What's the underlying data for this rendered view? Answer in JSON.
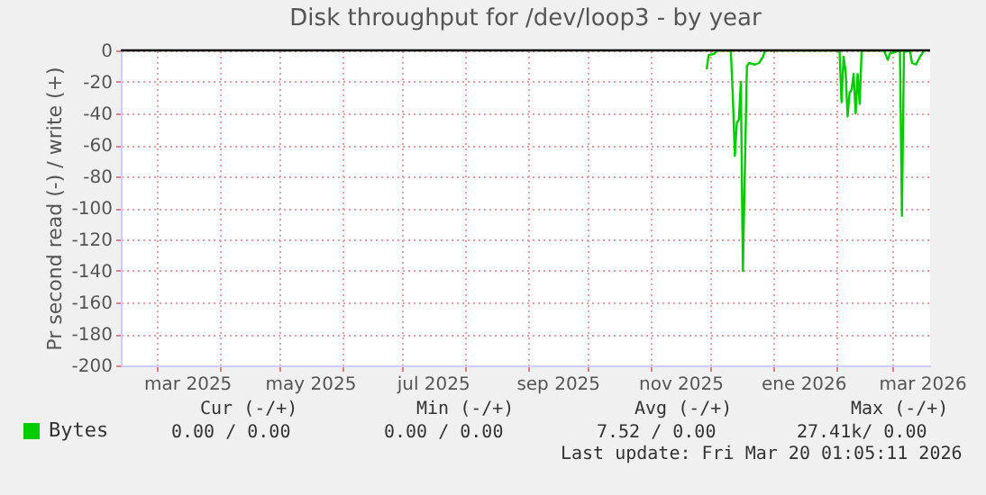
{
  "chart_data": {
    "type": "line",
    "title": "Disk throughput for /dev/loop3 - by year",
    "ylabel": "Pr second read (-) / write (+)",
    "series": [
      {
        "name": "Bytes",
        "color": "#00cc00",
        "x": [
          "2025-11-29",
          "2025-11-30",
          "2025-12-03",
          "2025-12-04",
          "2025-12-11",
          "2025-12-12",
          "2025-12-13",
          "2025-12-14",
          "2025-12-15",
          "2025-12-16",
          "2025-12-17",
          "2025-12-19",
          "2025-12-20",
          "2025-12-23",
          "2025-12-25",
          "2025-12-27",
          "2025-12-28",
          "2026-02-03",
          "2026-02-04",
          "2026-02-05",
          "2026-02-06",
          "2026-02-07",
          "2026-02-08",
          "2026-02-09",
          "2026-02-10",
          "2026-02-11",
          "2026-02-12",
          "2026-02-13",
          "2026-02-14",
          "2026-02-25",
          "2026-02-27",
          "2026-02-28",
          "2026-03-05",
          "2026-03-06",
          "2026-03-07",
          "2026-03-10",
          "2026-03-11",
          "2026-03-13",
          "2026-03-15",
          "2026-03-17"
        ],
        "values": [
          -12,
          -3,
          -2,
          0,
          0,
          -29,
          -67,
          -46,
          -44,
          -20,
          -140,
          -10,
          -8,
          -9,
          -8,
          -4,
          0,
          0,
          -33,
          -4,
          -13,
          -42,
          -27,
          -25,
          -15,
          -40,
          -15,
          -34,
          0,
          0,
          -6,
          -2,
          0,
          -105,
          -1,
          0,
          -8,
          -9,
          -4,
          0
        ]
      }
    ],
    "xlim": [
      "2025-02-11",
      "2026-03-20"
    ],
    "xticks": [
      {
        "value": "2025-03-01",
        "label": null
      },
      {
        "value": "2025-03-16",
        "label": "mar 2025"
      },
      {
        "value": "2025-04-01",
        "label": null
      },
      {
        "value": "2025-05-01",
        "label": null
      },
      {
        "value": "2025-05-16",
        "label": "may 2025"
      },
      {
        "value": "2025-06-01",
        "label": null
      },
      {
        "value": "2025-07-01",
        "label": null
      },
      {
        "value": "2025-07-16",
        "label": "jul 2025"
      },
      {
        "value": "2025-08-01",
        "label": null
      },
      {
        "value": "2025-09-01",
        "label": null
      },
      {
        "value": "2025-09-16",
        "label": "sep 2025"
      },
      {
        "value": "2025-10-01",
        "label": null
      },
      {
        "value": "2025-11-01",
        "label": null
      },
      {
        "value": "2025-11-16",
        "label": "nov 2025"
      },
      {
        "value": "2025-12-01",
        "label": null
      },
      {
        "value": "2026-01-01",
        "label": null
      },
      {
        "value": "2026-01-16",
        "label": "ene 2026"
      },
      {
        "value": "2026-02-01",
        "label": null
      },
      {
        "value": "2026-03-01",
        "label": null
      },
      {
        "value": "2026-03-16",
        "label": "mar 2026"
      }
    ],
    "ylim": [
      -200,
      0
    ],
    "yticks": [
      -200,
      -180,
      -160,
      -140,
      -120,
      -100,
      -80,
      -60,
      -40,
      -20,
      0
    ],
    "grid": true,
    "legend": "bottom left",
    "ref_lines": [
      {
        "axis": "y",
        "value": 0,
        "color": "#000000"
      }
    ],
    "annotations": [
      "Cur (-/+)",
      "Min (-/+)",
      "Avg (-/+)",
      "Max (-/+)",
      "0.00 /    0.00",
      "0.00 /    0.00",
      "7.52 /    0.00",
      "27.41k/    0.00",
      "Last update: Fri Mar 20 01:05:11 2026"
    ]
  }
}
